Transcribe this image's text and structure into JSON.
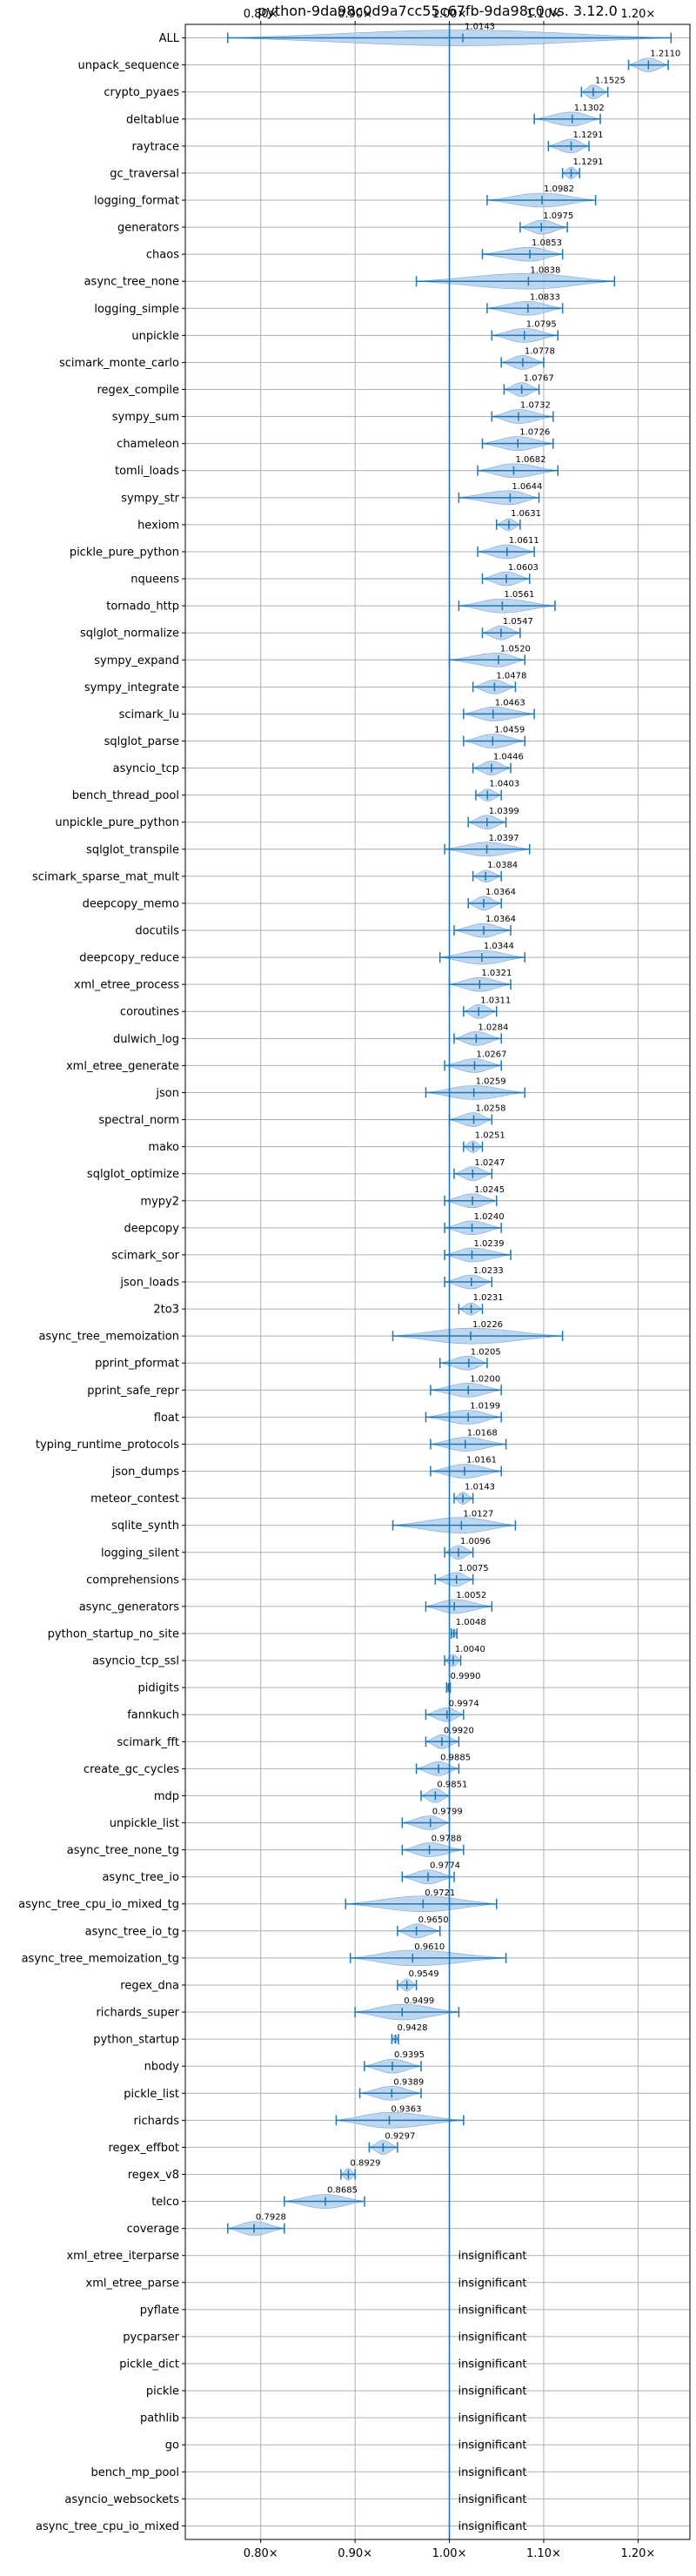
{
  "chart_data": {
    "type": "violin",
    "title": "python-9da98c0d9a7cc55c67fb-9da98c0 vs. 3.12.0",
    "x_ticks": [
      {
        "value": 0.8,
        "label": "0.80×"
      },
      {
        "value": 0.9,
        "label": "0.90×"
      },
      {
        "value": 1.0,
        "label": "1.00×"
      },
      {
        "value": 1.1,
        "label": "1.10×"
      },
      {
        "value": 1.2,
        "label": "1.20×"
      }
    ],
    "xlim": [
      0.72,
      1.255
    ],
    "reference_line": 1.0,
    "grid": true,
    "insignificant_label": "insignificant",
    "benchmarks": [
      {
        "name": "ALL",
        "value": 1.0143,
        "label": "1.0143",
        "lo": 0.765,
        "hi": 1.235,
        "spread": "wide"
      },
      {
        "name": "unpack_sequence",
        "value": 1.211,
        "label": "1.2110",
        "lo": 1.19,
        "hi": 1.232,
        "spread": "mid"
      },
      {
        "name": "crypto_pyaes",
        "value": 1.1525,
        "label": "1.1525",
        "lo": 1.14,
        "hi": 1.168,
        "spread": "mid"
      },
      {
        "name": "deltablue",
        "value": 1.1302,
        "label": "1.1302",
        "lo": 1.09,
        "hi": 1.16,
        "spread": "mid"
      },
      {
        "name": "raytrace",
        "value": 1.1291,
        "label": "1.1291",
        "lo": 1.105,
        "hi": 1.148,
        "spread": "mid"
      },
      {
        "name": "gc_traversal",
        "value": 1.1291,
        "label": "1.1291",
        "lo": 1.12,
        "hi": 1.138,
        "spread": "narrow"
      },
      {
        "name": "logging_format",
        "value": 1.0982,
        "label": "1.0982",
        "lo": 1.04,
        "hi": 1.155,
        "spread": "mid"
      },
      {
        "name": "generators",
        "value": 1.0975,
        "label": "1.0975",
        "lo": 1.075,
        "hi": 1.125,
        "spread": "mid"
      },
      {
        "name": "chaos",
        "value": 1.0853,
        "label": "1.0853",
        "lo": 1.035,
        "hi": 1.12,
        "spread": "mid"
      },
      {
        "name": "async_tree_none",
        "value": 1.0838,
        "label": "1.0838",
        "lo": 0.965,
        "hi": 1.175,
        "spread": "wide"
      },
      {
        "name": "logging_simple",
        "value": 1.0833,
        "label": "1.0833",
        "lo": 1.04,
        "hi": 1.12,
        "spread": "mid"
      },
      {
        "name": "unpickle",
        "value": 1.0795,
        "label": "1.0795",
        "lo": 1.045,
        "hi": 1.115,
        "spread": "mid"
      },
      {
        "name": "scimark_monte_carlo",
        "value": 1.0778,
        "label": "1.0778",
        "lo": 1.055,
        "hi": 1.1,
        "spread": "mid"
      },
      {
        "name": "regex_compile",
        "value": 1.0767,
        "label": "1.0767",
        "lo": 1.058,
        "hi": 1.095,
        "spread": "mid"
      },
      {
        "name": "sympy_sum",
        "value": 1.0732,
        "label": "1.0732",
        "lo": 1.045,
        "hi": 1.11,
        "spread": "mid"
      },
      {
        "name": "chameleon",
        "value": 1.0726,
        "label": "1.0726",
        "lo": 1.035,
        "hi": 1.11,
        "spread": "mid"
      },
      {
        "name": "tomli_loads",
        "value": 1.0682,
        "label": "1.0682",
        "lo": 1.03,
        "hi": 1.115,
        "spread": "mid"
      },
      {
        "name": "sympy_str",
        "value": 1.0644,
        "label": "1.0644",
        "lo": 1.01,
        "hi": 1.095,
        "spread": "mid"
      },
      {
        "name": "hexiom",
        "value": 1.0631,
        "label": "1.0631",
        "lo": 1.05,
        "hi": 1.075,
        "spread": "narrow"
      },
      {
        "name": "pickle_pure_python",
        "value": 1.0611,
        "label": "1.0611",
        "lo": 1.03,
        "hi": 1.09,
        "spread": "mid"
      },
      {
        "name": "nqueens",
        "value": 1.0603,
        "label": "1.0603",
        "lo": 1.035,
        "hi": 1.085,
        "spread": "mid"
      },
      {
        "name": "tornado_http",
        "value": 1.0561,
        "label": "1.0561",
        "lo": 1.01,
        "hi": 1.112,
        "spread": "mid"
      },
      {
        "name": "sqlglot_normalize",
        "value": 1.0547,
        "label": "1.0547",
        "lo": 1.035,
        "hi": 1.075,
        "spread": "mid"
      },
      {
        "name": "sympy_expand",
        "value": 1.052,
        "label": "1.0520",
        "lo": 1.0,
        "hi": 1.08,
        "spread": "mid"
      },
      {
        "name": "sympy_integrate",
        "value": 1.0478,
        "label": "1.0478",
        "lo": 1.025,
        "hi": 1.07,
        "spread": "mid"
      },
      {
        "name": "scimark_lu",
        "value": 1.0463,
        "label": "1.0463",
        "lo": 1.015,
        "hi": 1.09,
        "spread": "mid"
      },
      {
        "name": "sqlglot_parse",
        "value": 1.0459,
        "label": "1.0459",
        "lo": 1.015,
        "hi": 1.08,
        "spread": "mid"
      },
      {
        "name": "asyncio_tcp",
        "value": 1.0446,
        "label": "1.0446",
        "lo": 1.025,
        "hi": 1.065,
        "spread": "mid"
      },
      {
        "name": "bench_thread_pool",
        "value": 1.0403,
        "label": "1.0403",
        "lo": 1.028,
        "hi": 1.055,
        "spread": "narrow"
      },
      {
        "name": "unpickle_pure_python",
        "value": 1.0399,
        "label": "1.0399",
        "lo": 1.02,
        "hi": 1.06,
        "spread": "mid"
      },
      {
        "name": "sqlglot_transpile",
        "value": 1.0397,
        "label": "1.0397",
        "lo": 0.995,
        "hi": 1.085,
        "spread": "mid"
      },
      {
        "name": "scimark_sparse_mat_mult",
        "value": 1.0384,
        "label": "1.0384",
        "lo": 1.025,
        "hi": 1.055,
        "spread": "narrow"
      },
      {
        "name": "deepcopy_memo",
        "value": 1.0364,
        "label": "1.0364",
        "lo": 1.02,
        "hi": 1.055,
        "spread": "mid"
      },
      {
        "name": "docutils",
        "value": 1.0364,
        "label": "1.0364",
        "lo": 1.005,
        "hi": 1.065,
        "spread": "mid"
      },
      {
        "name": "deepcopy_reduce",
        "value": 1.0344,
        "label": "1.0344",
        "lo": 0.99,
        "hi": 1.08,
        "spread": "mid"
      },
      {
        "name": "xml_etree_process",
        "value": 1.0321,
        "label": "1.0321",
        "lo": 1.0,
        "hi": 1.065,
        "spread": "mid"
      },
      {
        "name": "coroutines",
        "value": 1.0311,
        "label": "1.0311",
        "lo": 1.015,
        "hi": 1.05,
        "spread": "mid"
      },
      {
        "name": "dulwich_log",
        "value": 1.0284,
        "label": "1.0284",
        "lo": 1.005,
        "hi": 1.055,
        "spread": "mid"
      },
      {
        "name": "xml_etree_generate",
        "value": 1.0267,
        "label": "1.0267",
        "lo": 0.995,
        "hi": 1.055,
        "spread": "mid"
      },
      {
        "name": "json",
        "value": 1.0259,
        "label": "1.0259",
        "lo": 0.975,
        "hi": 1.08,
        "spread": "mid"
      },
      {
        "name": "spectral_norm",
        "value": 1.0258,
        "label": "1.0258",
        "lo": 1.0,
        "hi": 1.045,
        "spread": "mid"
      },
      {
        "name": "mako",
        "value": 1.0251,
        "label": "1.0251",
        "lo": 1.015,
        "hi": 1.035,
        "spread": "narrow"
      },
      {
        "name": "sqlglot_optimize",
        "value": 1.0247,
        "label": "1.0247",
        "lo": 1.005,
        "hi": 1.045,
        "spread": "mid"
      },
      {
        "name": "mypy2",
        "value": 1.0245,
        "label": "1.0245",
        "lo": 0.995,
        "hi": 1.05,
        "spread": "mid"
      },
      {
        "name": "deepcopy",
        "value": 1.024,
        "label": "1.0240",
        "lo": 0.995,
        "hi": 1.055,
        "spread": "mid"
      },
      {
        "name": "scimark_sor",
        "value": 1.0239,
        "label": "1.0239",
        "lo": 0.995,
        "hi": 1.065,
        "spread": "mid"
      },
      {
        "name": "json_loads",
        "value": 1.0233,
        "label": "1.0233",
        "lo": 0.995,
        "hi": 1.045,
        "spread": "mid"
      },
      {
        "name": "2to3",
        "value": 1.0231,
        "label": "1.0231",
        "lo": 1.01,
        "hi": 1.035,
        "spread": "narrow"
      },
      {
        "name": "async_tree_memoization",
        "value": 1.0226,
        "label": "1.0226",
        "lo": 0.94,
        "hi": 1.12,
        "spread": "wide"
      },
      {
        "name": "pprint_pformat",
        "value": 1.0205,
        "label": "1.0205",
        "lo": 0.99,
        "hi": 1.04,
        "spread": "mid"
      },
      {
        "name": "pprint_safe_repr",
        "value": 1.02,
        "label": "1.0200",
        "lo": 0.98,
        "hi": 1.055,
        "spread": "mid"
      },
      {
        "name": "float",
        "value": 1.0199,
        "label": "1.0199",
        "lo": 0.975,
        "hi": 1.055,
        "spread": "mid"
      },
      {
        "name": "typing_runtime_protocols",
        "value": 1.0168,
        "label": "1.0168",
        "lo": 0.98,
        "hi": 1.06,
        "spread": "mid"
      },
      {
        "name": "json_dumps",
        "value": 1.0161,
        "label": "1.0161",
        "lo": 0.98,
        "hi": 1.055,
        "spread": "mid"
      },
      {
        "name": "meteor_contest",
        "value": 1.0143,
        "label": "1.0143",
        "lo": 1.005,
        "hi": 1.025,
        "spread": "narrow"
      },
      {
        "name": "sqlite_synth",
        "value": 1.0127,
        "label": "1.0127",
        "lo": 0.94,
        "hi": 1.07,
        "spread": "wide"
      },
      {
        "name": "logging_silent",
        "value": 1.0096,
        "label": "1.0096",
        "lo": 0.995,
        "hi": 1.025,
        "spread": "mid"
      },
      {
        "name": "comprehensions",
        "value": 1.0075,
        "label": "1.0075",
        "lo": 0.985,
        "hi": 1.025,
        "spread": "mid"
      },
      {
        "name": "async_generators",
        "value": 1.0052,
        "label": "1.0052",
        "lo": 0.975,
        "hi": 1.045,
        "spread": "mid"
      },
      {
        "name": "python_startup_no_site",
        "value": 1.0048,
        "label": "1.0048",
        "lo": 1.002,
        "hi": 1.008,
        "spread": "tiny"
      },
      {
        "name": "asyncio_tcp_ssl",
        "value": 1.004,
        "label": "1.0040",
        "lo": 0.995,
        "hi": 1.012,
        "spread": "narrow"
      },
      {
        "name": "pidigits",
        "value": 0.999,
        "label": "0.9990",
        "lo": 0.997,
        "hi": 1.001,
        "spread": "tiny"
      },
      {
        "name": "fannkuch",
        "value": 0.9974,
        "label": "0.9974",
        "lo": 0.975,
        "hi": 1.015,
        "spread": "mid"
      },
      {
        "name": "scimark_fft",
        "value": 0.992,
        "label": "0.9920",
        "lo": 0.975,
        "hi": 1.01,
        "spread": "mid"
      },
      {
        "name": "create_gc_cycles",
        "value": 0.9885,
        "label": "0.9885",
        "lo": 0.965,
        "hi": 1.01,
        "spread": "mid"
      },
      {
        "name": "mdp",
        "value": 0.9851,
        "label": "0.9851",
        "lo": 0.97,
        "hi": 1.0,
        "spread": "mid"
      },
      {
        "name": "unpickle_list",
        "value": 0.9799,
        "label": "0.9799",
        "lo": 0.95,
        "hi": 1.0,
        "spread": "mid"
      },
      {
        "name": "async_tree_none_tg",
        "value": 0.9788,
        "label": "0.9788",
        "lo": 0.95,
        "hi": 1.015,
        "spread": "mid"
      },
      {
        "name": "async_tree_io",
        "value": 0.9774,
        "label": "0.9774",
        "lo": 0.95,
        "hi": 1.005,
        "spread": "mid"
      },
      {
        "name": "async_tree_cpu_io_mixed_tg",
        "value": 0.9721,
        "label": "0.9721",
        "lo": 0.89,
        "hi": 1.05,
        "spread": "wide"
      },
      {
        "name": "async_tree_io_tg",
        "value": 0.965,
        "label": "0.9650",
        "lo": 0.945,
        "hi": 0.99,
        "spread": "mid"
      },
      {
        "name": "async_tree_memoization_tg",
        "value": 0.961,
        "label": "0.9610",
        "lo": 0.895,
        "hi": 1.06,
        "spread": "wide"
      },
      {
        "name": "regex_dna",
        "value": 0.9549,
        "label": "0.9549",
        "lo": 0.945,
        "hi": 0.965,
        "spread": "narrow"
      },
      {
        "name": "richards_super",
        "value": 0.9499,
        "label": "0.9499",
        "lo": 0.9,
        "hi": 1.01,
        "spread": "wide"
      },
      {
        "name": "python_startup",
        "value": 0.9428,
        "label": "0.9428",
        "lo": 0.939,
        "hi": 0.946,
        "spread": "tiny"
      },
      {
        "name": "nbody",
        "value": 0.9395,
        "label": "0.9395",
        "lo": 0.91,
        "hi": 0.97,
        "spread": "mid"
      },
      {
        "name": "pickle_list",
        "value": 0.9389,
        "label": "0.9389",
        "lo": 0.905,
        "hi": 0.97,
        "spread": "mid"
      },
      {
        "name": "richards",
        "value": 0.9363,
        "label": "0.9363",
        "lo": 0.88,
        "hi": 1.015,
        "spread": "wide"
      },
      {
        "name": "regex_effbot",
        "value": 0.9297,
        "label": "0.9297",
        "lo": 0.915,
        "hi": 0.945,
        "spread": "mid"
      },
      {
        "name": "regex_v8",
        "value": 0.8929,
        "label": "0.8929",
        "lo": 0.885,
        "hi": 0.9,
        "spread": "narrow"
      },
      {
        "name": "telco",
        "value": 0.8685,
        "label": "0.8685",
        "lo": 0.825,
        "hi": 0.91,
        "spread": "mid"
      },
      {
        "name": "coverage",
        "value": 0.7928,
        "label": "0.7928",
        "lo": 0.765,
        "hi": 0.825,
        "spread": "mid"
      },
      {
        "name": "xml_etree_iterparse",
        "insignificant": true
      },
      {
        "name": "xml_etree_parse",
        "insignificant": true
      },
      {
        "name": "pyflate",
        "insignificant": true
      },
      {
        "name": "pycparser",
        "insignificant": true
      },
      {
        "name": "pickle_dict",
        "insignificant": true
      },
      {
        "name": "pickle",
        "insignificant": true
      },
      {
        "name": "pathlib",
        "insignificant": true
      },
      {
        "name": "go",
        "insignificant": true
      },
      {
        "name": "bench_mp_pool",
        "insignificant": true
      },
      {
        "name": "asyncio_websockets",
        "insignificant": true
      },
      {
        "name": "async_tree_cpu_io_mixed",
        "insignificant": true
      }
    ],
    "colors": {
      "violin_fill": "#a8c8e8",
      "violin_edge": "#7aa9d6",
      "whisker": "#1f77b4",
      "reference": "#1f77b4",
      "grid": "#b0b0b0",
      "axis": "#000000"
    }
  }
}
